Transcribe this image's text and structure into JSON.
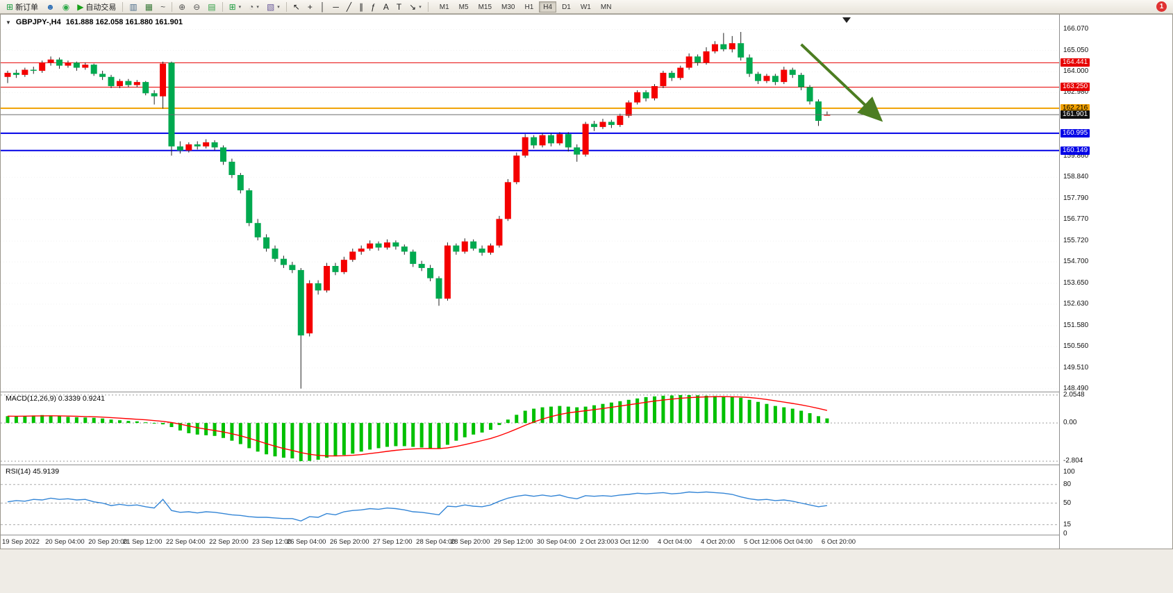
{
  "toolbar": {
    "new_order_label": "新订单",
    "autotrading_label": "自动交易",
    "timeframes": [
      "M1",
      "M5",
      "M15",
      "M30",
      "H1",
      "H4",
      "D1",
      "W1",
      "MN"
    ],
    "active_timeframe": "H4",
    "notification_badge": "1"
  },
  "title_bar": {
    "symbol_period": "GBPJPY-,H4",
    "ohlc": "161.888 162.058 161.880 161.901"
  },
  "macd_panel": {
    "label": "MACD(12,26,9) 0.3339 0.9241"
  },
  "rsi_panel": {
    "label": "RSI(14) 45.9139"
  },
  "chart_data": [
    {
      "type": "candlestick",
      "symbol": "GBPJPY-",
      "timeframe": "H4",
      "ohlc_display": "161.888 162.058 161.880 161.901",
      "ylim": [
        148.35,
        166.8
      ],
      "bull_color": "#f40000",
      "bear_color": "#00a94f",
      "y_ticks": [
        "166.070",
        "165.050",
        "164.000",
        "162.980",
        "159.860",
        "158.840",
        "157.790",
        "156.770",
        "155.720",
        "154.700",
        "153.650",
        "152.630",
        "151.580",
        "150.560",
        "149.510",
        "148.490"
      ],
      "levels": [
        {
          "price": 164.441,
          "label": "164.441",
          "color": "#e60000",
          "badge_text_color": "#ffffff",
          "line_width": 1
        },
        {
          "price": 163.25,
          "label": "163.250",
          "color": "#e60000",
          "badge_text_color": "#ffffff",
          "line_width": 1
        },
        {
          "price": 162.216,
          "label": "162.216",
          "color": "#f0a000",
          "badge_text_color": "#000000",
          "line_width": 2
        },
        {
          "price": 160.995,
          "label": "160.995",
          "color": "#0000e6",
          "badge_text_color": "#ffffff",
          "line_width": 2
        },
        {
          "price": 160.149,
          "label": "160.149",
          "color": "#0000e6",
          "badge_text_color": "#ffffff",
          "line_width": 2
        }
      ],
      "current_price": {
        "price": 161.901,
        "label": "161.901",
        "color": "#6a6a6a",
        "badge_color": "#101010"
      },
      "arrow": {
        "type": "trend-arrow",
        "direction": "down",
        "color": "#4c7d21",
        "from_candle": 92,
        "from_price": 165.34,
        "to_candle": 101,
        "to_price": 161.74
      },
      "x_labels": [
        "19 Sep 2022",
        "20 Sep 04:00",
        "20 Sep 20:00",
        "21 Sep 12:00",
        "22 Sep 04:00",
        "22 Sep 20:00",
        "23 Sep 12:00",
        "26 Sep 04:00",
        "26 Sep 20:00",
        "27 Sep 12:00",
        "28 Sep 04:00",
        "28 Sep 20:00",
        "29 Sep 12:00",
        "30 Sep 04:00",
        "2 Oct 23:00",
        "3 Oct 12:00",
        "4 Oct 04:00",
        "4 Oct 20:00",
        "5 Oct 12:00",
        "6 Oct 04:00",
        "6 Oct 20:00"
      ],
      "x_label_index": [
        0,
        5,
        10,
        14,
        19,
        24,
        29,
        33,
        38,
        43,
        48,
        52,
        57,
        62,
        67,
        71,
        76,
        81,
        86,
        90,
        95
      ],
      "candles": [
        [
          163.75,
          164.05,
          163.45,
          163.95
        ],
        [
          163.95,
          164.1,
          163.7,
          163.85
        ],
        [
          163.85,
          164.2,
          163.75,
          164.1
        ],
        [
          164.1,
          164.25,
          163.9,
          164.05
        ],
        [
          164.05,
          164.55,
          163.95,
          164.45
        ],
        [
          164.45,
          164.75,
          164.3,
          164.6
        ],
        [
          164.6,
          164.7,
          164.15,
          164.3
        ],
        [
          164.3,
          164.55,
          164.2,
          164.45
        ],
        [
          164.45,
          164.5,
          164.05,
          164.2
        ],
        [
          164.2,
          164.45,
          164.1,
          164.35
        ],
        [
          164.35,
          164.4,
          163.8,
          163.9
        ],
        [
          163.9,
          164.05,
          163.6,
          163.75
        ],
        [
          163.75,
          163.85,
          163.2,
          163.3
        ],
        [
          163.3,
          163.65,
          163.2,
          163.55
        ],
        [
          163.55,
          163.65,
          163.25,
          163.35
        ],
        [
          163.35,
          163.6,
          163.25,
          163.5
        ],
        [
          163.5,
          163.55,
          162.85,
          162.95
        ],
        [
          162.95,
          163.1,
          162.4,
          162.8
        ],
        [
          162.8,
          164.5,
          162.2,
          164.4
        ],
        [
          164.45,
          164.5,
          159.9,
          160.35
        ],
        [
          160.35,
          160.6,
          160.0,
          160.15
        ],
        [
          160.15,
          160.55,
          160.05,
          160.45
        ],
        [
          160.45,
          160.6,
          160.2,
          160.35
        ],
        [
          160.35,
          160.7,
          160.25,
          160.55
        ],
        [
          160.55,
          160.65,
          160.15,
          160.3
        ],
        [
          160.3,
          160.4,
          159.45,
          159.6
        ],
        [
          159.6,
          159.75,
          158.8,
          158.95
        ],
        [
          158.95,
          159.05,
          158.05,
          158.2
        ],
        [
          158.2,
          158.3,
          156.45,
          156.6
        ],
        [
          156.6,
          156.8,
          155.75,
          155.9
        ],
        [
          155.9,
          156.05,
          155.2,
          155.35
        ],
        [
          155.35,
          155.5,
          154.7,
          154.85
        ],
        [
          154.85,
          155.0,
          154.4,
          154.55
        ],
        [
          154.55,
          154.7,
          154.15,
          154.3
        ],
        [
          154.3,
          154.4,
          148.5,
          151.1
        ],
        [
          151.2,
          153.8,
          151.05,
          153.65
        ],
        [
          153.65,
          153.8,
          153.1,
          153.3
        ],
        [
          153.3,
          154.65,
          153.2,
          154.5
        ],
        [
          154.5,
          154.65,
          154.05,
          154.2
        ],
        [
          154.2,
          154.95,
          154.1,
          154.8
        ],
        [
          154.8,
          155.35,
          154.7,
          155.2
        ],
        [
          155.2,
          155.5,
          155.05,
          155.35
        ],
        [
          155.35,
          155.75,
          155.25,
          155.6
        ],
        [
          155.6,
          155.7,
          155.25,
          155.4
        ],
        [
          155.4,
          155.8,
          155.3,
          155.65
        ],
        [
          155.65,
          155.75,
          155.3,
          155.45
        ],
        [
          155.45,
          155.55,
          155.05,
          155.2
        ],
        [
          155.2,
          155.3,
          154.45,
          154.6
        ],
        [
          154.6,
          154.75,
          154.25,
          154.4
        ],
        [
          154.4,
          154.55,
          153.75,
          153.9
        ],
        [
          153.9,
          154.0,
          152.55,
          152.9
        ],
        [
          152.9,
          155.65,
          152.8,
          155.5
        ],
        [
          155.5,
          155.6,
          155.05,
          155.2
        ],
        [
          155.2,
          155.85,
          155.1,
          155.7
        ],
        [
          155.7,
          155.8,
          155.25,
          155.35
        ],
        [
          155.35,
          155.5,
          155.0,
          155.15
        ],
        [
          155.15,
          155.6,
          155.05,
          155.5
        ],
        [
          155.5,
          156.95,
          155.4,
          156.8
        ],
        [
          156.8,
          158.75,
          156.7,
          158.6
        ],
        [
          158.6,
          160.05,
          158.5,
          159.9
        ],
        [
          159.9,
          160.95,
          159.8,
          160.8
        ],
        [
          160.8,
          160.9,
          160.25,
          160.4
        ],
        [
          160.4,
          161.0,
          160.3,
          160.9
        ],
        [
          160.9,
          161.0,
          160.35,
          160.5
        ],
        [
          160.5,
          161.05,
          160.4,
          160.95
        ],
        [
          160.95,
          161.05,
          160.1,
          160.3
        ],
        [
          160.3,
          160.45,
          159.6,
          159.95
        ],
        [
          159.95,
          161.55,
          159.85,
          161.45
        ],
        [
          161.45,
          161.6,
          161.1,
          161.3
        ],
        [
          161.3,
          161.7,
          161.2,
          161.55
        ],
        [
          161.55,
          161.65,
          161.25,
          161.4
        ],
        [
          161.4,
          161.95,
          161.3,
          161.85
        ],
        [
          161.85,
          162.6,
          161.75,
          162.5
        ],
        [
          162.5,
          163.1,
          162.4,
          163.0
        ],
        [
          163.0,
          163.1,
          162.55,
          162.7
        ],
        [
          162.7,
          163.4,
          162.6,
          163.3
        ],
        [
          163.3,
          164.05,
          163.2,
          163.95
        ],
        [
          163.95,
          164.05,
          163.55,
          163.7
        ],
        [
          163.7,
          164.3,
          163.6,
          164.2
        ],
        [
          164.2,
          164.9,
          164.1,
          164.75
        ],
        [
          164.75,
          164.85,
          164.3,
          164.45
        ],
        [
          164.45,
          165.2,
          164.35,
          165.0
        ],
        [
          165.0,
          165.5,
          164.9,
          165.35
        ],
        [
          165.35,
          165.9,
          165.0,
          165.1
        ],
        [
          165.1,
          165.75,
          164.95,
          165.4
        ],
        [
          165.4,
          165.95,
          164.55,
          164.7
        ],
        [
          164.7,
          164.85,
          163.75,
          163.9
        ],
        [
          163.9,
          164.0,
          163.4,
          163.55
        ],
        [
          163.55,
          163.9,
          163.45,
          163.8
        ],
        [
          163.8,
          163.9,
          163.35,
          163.5
        ],
        [
          163.5,
          164.25,
          163.4,
          164.1
        ],
        [
          164.1,
          164.2,
          163.7,
          163.85
        ],
        [
          163.85,
          163.95,
          163.1,
          163.25
        ],
        [
          163.25,
          163.35,
          162.4,
          162.55
        ],
        [
          162.55,
          162.65,
          161.35,
          161.6
        ],
        [
          161.888,
          162.058,
          161.88,
          161.901
        ]
      ]
    },
    {
      "type": "bar",
      "name": "MACD(12,26,9)",
      "label": "MACD(12,26,9) 0.3339 0.9241",
      "main_value": 0.3339,
      "signal_value": 0.9241,
      "signal_period": 9,
      "ylim": [
        -3.05,
        2.25
      ],
      "y_ticks": [
        "2.0548",
        "0.00",
        "-2.804"
      ],
      "histogram_color": "#00c000",
      "signal_color": "#ff0000",
      "values": [
        0.5,
        0.48,
        0.52,
        0.55,
        0.58,
        0.55,
        0.5,
        0.45,
        0.42,
        0.4,
        0.38,
        0.33,
        0.25,
        0.2,
        0.15,
        0.12,
        0.05,
        -0.05,
        -0.1,
        -0.3,
        -0.55,
        -0.75,
        -0.85,
        -0.9,
        -0.95,
        -1.1,
        -1.3,
        -1.55,
        -1.85,
        -2.1,
        -2.3,
        -2.45,
        -2.55,
        -2.6,
        -2.8,
        -2.78,
        -2.7,
        -2.55,
        -2.45,
        -2.35,
        -2.25,
        -2.1,
        -1.95,
        -1.85,
        -1.75,
        -1.7,
        -1.7,
        -1.75,
        -1.8,
        -1.85,
        -1.9,
        -1.6,
        -1.3,
        -1.05,
        -0.85,
        -0.7,
        -0.5,
        -0.15,
        0.25,
        0.6,
        0.9,
        1.05,
        1.15,
        1.2,
        1.25,
        1.2,
        1.15,
        1.2,
        1.3,
        1.4,
        1.5,
        1.6,
        1.7,
        1.8,
        1.9,
        1.95,
        2.0,
        2.02,
        2.05,
        2.05,
        2.03,
        2.0,
        1.98,
        1.95,
        1.9,
        1.85,
        1.7,
        1.55,
        1.4,
        1.25,
        1.15,
        1.05,
        0.9,
        0.72,
        0.5,
        0.3339
      ]
    },
    {
      "type": "line",
      "name": "RSI(14)",
      "label": "RSI(14) 45.9139",
      "value": 45.9139,
      "ylim": [
        0,
        100
      ],
      "levels": [
        80,
        50,
        15
      ],
      "y_ticks": [
        "100",
        "80",
        "50",
        "15",
        "0"
      ],
      "line_color": "#3385d6",
      "values": [
        52,
        54,
        53,
        56,
        55,
        58,
        56,
        57,
        55,
        56,
        52,
        50,
        46,
        48,
        46,
        47,
        44,
        42,
        56,
        38,
        35,
        36,
        34,
        36,
        35,
        33,
        31,
        30,
        28,
        27,
        27,
        26,
        25,
        25,
        21,
        28,
        27,
        33,
        31,
        36,
        38,
        39,
        41,
        40,
        42,
        41,
        39,
        36,
        35,
        33,
        31,
        45,
        44,
        47,
        45,
        44,
        47,
        53,
        58,
        61,
        63,
        61,
        63,
        61,
        63,
        59,
        57,
        62,
        61,
        62,
        61,
        63,
        64,
        66,
        65,
        66,
        67,
        65,
        66,
        68,
        67,
        68,
        67,
        66,
        64,
        60,
        57,
        55,
        56,
        54,
        55,
        53,
        50,
        47,
        44,
        45.9
      ]
    }
  ]
}
